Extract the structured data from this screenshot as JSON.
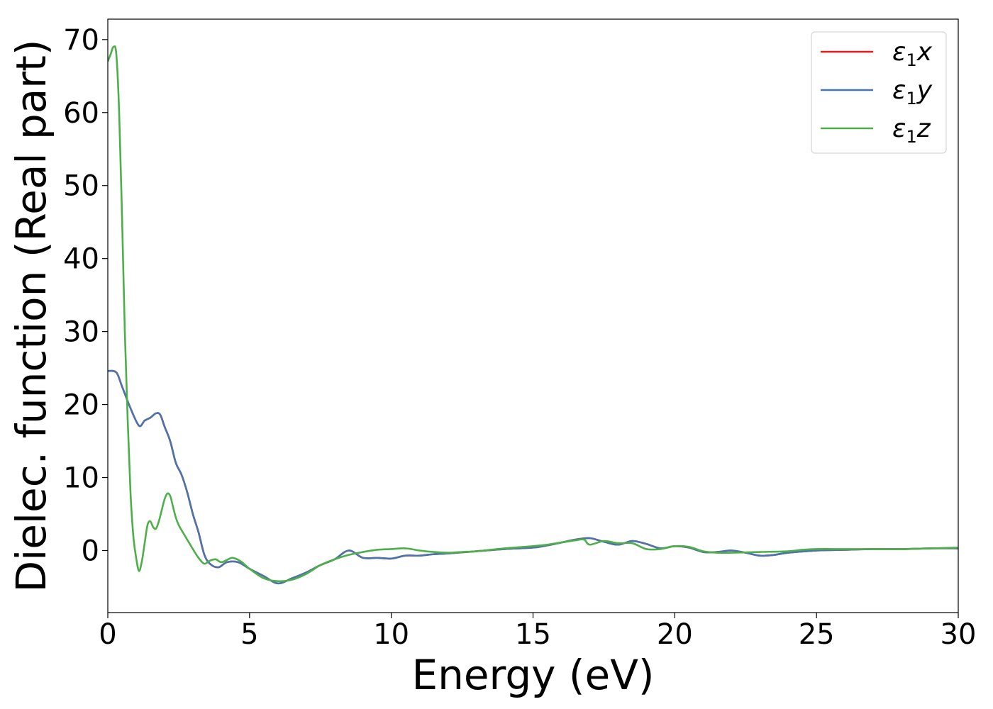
{
  "chart_data": {
    "type": "line",
    "title": "",
    "xlabel": "Energy (eV)",
    "ylabel": "Dielec. function (Real part)",
    "xlim": [
      0,
      30
    ],
    "ylim": [
      -8.5,
      72.8
    ],
    "xticks": [
      0,
      5,
      10,
      15,
      20,
      25,
      30
    ],
    "yticks": [
      0,
      10,
      20,
      30,
      40,
      50,
      60,
      70
    ],
    "grid": false,
    "legend_position": "top-right",
    "series": [
      {
        "name": "ε1x",
        "legend_base": "ε",
        "legend_sub": "1",
        "legend_var": "x",
        "color": "#e41a1c",
        "x": [
          0,
          0.3,
          0.5,
          0.8,
          1.1,
          1.3,
          1.5,
          1.7,
          1.85,
          2.0,
          2.2,
          2.4,
          2.6,
          2.8,
          3.0,
          3.2,
          3.4,
          3.6,
          3.9,
          4.2,
          4.6,
          5.0,
          5.5,
          6.0,
          6.5,
          7.0,
          7.5,
          8.0,
          8.5,
          9.0,
          9.5,
          10.0,
          10.5,
          11.0,
          11.5,
          12.0,
          13.0,
          14.0,
          15.0,
          15.5,
          16.0,
          16.5,
          17.0,
          17.5,
          18.0,
          18.5,
          19.0,
          19.5,
          20.0,
          20.5,
          21.0,
          21.5,
          22.0,
          22.5,
          23.0,
          23.5,
          24.0,
          25.0,
          26.0,
          27.0,
          28.0,
          29.0,
          30.0
        ],
        "y": [
          24.6,
          24.4,
          22.5,
          19.5,
          17.1,
          17.8,
          18.2,
          18.8,
          18.6,
          17.0,
          15.0,
          12.0,
          10.4,
          8.0,
          5.0,
          2.5,
          -0.5,
          -1.8,
          -2.3,
          -1.6,
          -1.6,
          -2.5,
          -3.5,
          -4.5,
          -3.8,
          -3.0,
          -2.0,
          -1.2,
          0.0,
          -1.0,
          -1.0,
          -1.1,
          -0.7,
          -0.7,
          -0.5,
          -0.4,
          -0.1,
          0.2,
          0.4,
          0.7,
          1.1,
          1.5,
          1.7,
          1.2,
          0.8,
          1.3,
          0.9,
          0.3,
          0.6,
          0.4,
          -0.2,
          -0.2,
          0.0,
          -0.3,
          -0.7,
          -0.6,
          -0.3,
          0.0,
          0.1,
          0.2,
          0.2,
          0.3,
          0.3
        ]
      },
      {
        "name": "ε1y",
        "legend_base": "ε",
        "legend_sub": "1",
        "legend_var": "y",
        "color": "#4a74ae",
        "x": [
          0,
          0.3,
          0.5,
          0.8,
          1.1,
          1.3,
          1.5,
          1.7,
          1.85,
          2.0,
          2.2,
          2.4,
          2.6,
          2.8,
          3.0,
          3.2,
          3.4,
          3.6,
          3.9,
          4.2,
          4.6,
          5.0,
          5.5,
          6.0,
          6.5,
          7.0,
          7.5,
          8.0,
          8.5,
          9.0,
          9.5,
          10.0,
          10.5,
          11.0,
          11.5,
          12.0,
          13.0,
          14.0,
          15.0,
          15.5,
          16.0,
          16.5,
          17.0,
          17.5,
          18.0,
          18.5,
          19.0,
          19.5,
          20.0,
          20.5,
          21.0,
          21.5,
          22.0,
          22.5,
          23.0,
          23.5,
          24.0,
          25.0,
          26.0,
          27.0,
          28.0,
          29.0,
          30.0
        ],
        "y": [
          24.6,
          24.4,
          22.5,
          19.5,
          17.1,
          17.8,
          18.2,
          18.8,
          18.6,
          17.0,
          15.0,
          12.0,
          10.4,
          8.0,
          5.0,
          2.5,
          -0.5,
          -1.8,
          -2.3,
          -1.6,
          -1.6,
          -2.5,
          -3.5,
          -4.5,
          -3.8,
          -3.0,
          -2.0,
          -1.2,
          0.0,
          -1.0,
          -1.0,
          -1.1,
          -0.7,
          -0.7,
          -0.5,
          -0.4,
          -0.1,
          0.2,
          0.4,
          0.7,
          1.1,
          1.5,
          1.7,
          1.2,
          0.8,
          1.3,
          0.9,
          0.3,
          0.6,
          0.4,
          -0.2,
          -0.2,
          0.0,
          -0.3,
          -0.7,
          -0.6,
          -0.3,
          0.0,
          0.1,
          0.2,
          0.2,
          0.3,
          0.3
        ]
      },
      {
        "name": "ε1z",
        "legend_base": "ε",
        "legend_sub": "1",
        "legend_var": "z",
        "color": "#4daf4a",
        "x": [
          0,
          0.1,
          0.2,
          0.3,
          0.4,
          0.5,
          0.6,
          0.7,
          0.8,
          0.9,
          1.0,
          1.1,
          1.2,
          1.3,
          1.4,
          1.5,
          1.6,
          1.7,
          1.8,
          1.9,
          2.0,
          2.1,
          2.2,
          2.3,
          2.4,
          2.5,
          2.6,
          2.8,
          3.0,
          3.2,
          3.4,
          3.6,
          3.8,
          4.0,
          4.2,
          4.4,
          4.7,
          5.0,
          5.5,
          6.0,
          6.5,
          7.0,
          7.5,
          8.0,
          8.5,
          9.0,
          9.5,
          10.0,
          10.5,
          11.0,
          11.5,
          12.0,
          12.5,
          13.0,
          14.0,
          15.0,
          15.5,
          16.0,
          16.5,
          16.8,
          17.0,
          17.5,
          18.0,
          18.5,
          19.0,
          19.5,
          20.0,
          20.5,
          21.0,
          21.5,
          22.0,
          23.0,
          24.0,
          24.5,
          25.0,
          26.0,
          27.0,
          28.0,
          29.0,
          30.0
        ],
        "y": [
          67.0,
          68.0,
          69.0,
          68.0,
          60.0,
          46.0,
          30.0,
          18.0,
          8.0,
          2.0,
          -1.0,
          -2.8,
          -1.5,
          1.0,
          3.5,
          4.0,
          3.2,
          3.0,
          4.0,
          5.5,
          7.0,
          7.8,
          7.5,
          6.0,
          4.5,
          3.5,
          2.8,
          1.5,
          0.2,
          -1.0,
          -1.8,
          -1.4,
          -1.2,
          -1.6,
          -1.3,
          -1.0,
          -1.5,
          -2.5,
          -3.8,
          -4.2,
          -4.0,
          -3.2,
          -2.0,
          -1.2,
          -0.6,
          -0.2,
          0.1,
          0.2,
          0.3,
          0.0,
          -0.2,
          -0.3,
          -0.2,
          -0.1,
          0.3,
          0.6,
          0.8,
          1.1,
          1.4,
          1.5,
          0.8,
          1.3,
          1.0,
          1.0,
          0.2,
          0.2,
          0.6,
          0.5,
          -0.1,
          -0.3,
          -0.3,
          -0.2,
          -0.1,
          0.1,
          0.2,
          0.2,
          0.2,
          0.2,
          0.3,
          0.4
        ]
      }
    ]
  }
}
